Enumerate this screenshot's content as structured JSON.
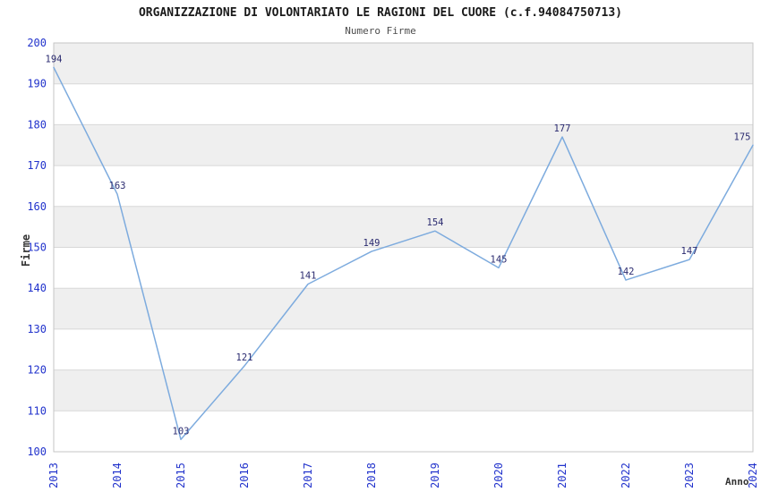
{
  "chart_data": {
    "type": "line",
    "title": "ORGANIZZAZIONE DI VOLONTARIATO LE RAGIONI DEL CUORE (c.f.94084750713)",
    "subtitle": "Numero Firme",
    "xlabel": "Anno",
    "ylabel": "Firme",
    "x": [
      "2013",
      "2014",
      "2015",
      "2016",
      "2017",
      "2018",
      "2019",
      "2020",
      "2021",
      "2022",
      "2023",
      "2024"
    ],
    "series": [
      {
        "name": "Numero Firme",
        "values": [
          194,
          163,
          103,
          121,
          141,
          149,
          154,
          145,
          177,
          142,
          147,
          175
        ]
      }
    ],
    "ylim": [
      100,
      200
    ],
    "ytick_step": 10,
    "grid": true,
    "legend": "none",
    "background_bands": "alternating gray/white per 10 units, gray topmost (190-200)",
    "colors": {
      "line": "#7dabde",
      "tick_label": "#2233cc",
      "data_label": "#2b2b70",
      "band": "#efefef",
      "grid": "#d8d8d8",
      "border": "#c6c6c6",
      "title": "#1a1a1a",
      "subtitle": "#4d4d4d",
      "axis_label": "#333333"
    }
  }
}
